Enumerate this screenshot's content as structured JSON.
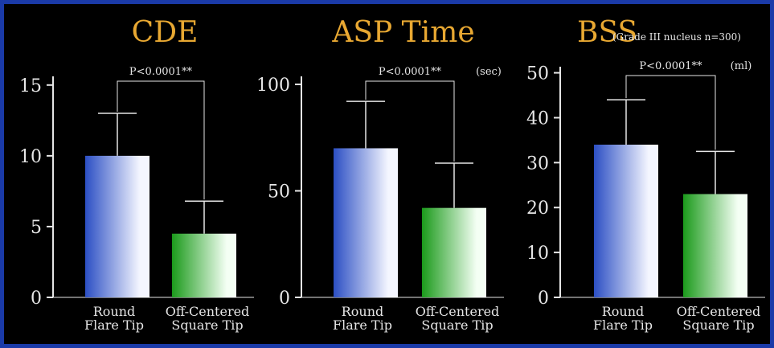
{
  "theme": {
    "background": "#000000",
    "border": "#1a3aa8",
    "title_color": "#e8a832",
    "text_color": "#e6e6e6",
    "bar1_colors": [
      "#2c4fc4",
      "#f4f6ff"
    ],
    "bar2_colors": [
      "#1b9a1b",
      "#f4fff4"
    ]
  },
  "chart_data": [
    {
      "type": "bar",
      "title": "CDE",
      "subtitle": "",
      "unit": "",
      "significance": "P<0.0001**",
      "categories": [
        [
          "Round",
          "Flare Tip"
        ],
        [
          "Off-Centered",
          "Square Tip"
        ]
      ],
      "values": [
        10,
        4.5
      ],
      "error_upper": [
        13,
        6.8
      ],
      "ylim": [
        0,
        15.5
      ],
      "yticks": [
        0,
        5,
        10,
        15
      ]
    },
    {
      "type": "bar",
      "title": "ASP Time",
      "subtitle": "",
      "unit": "(sec)",
      "significance": "P<0.0001**",
      "categories": [
        [
          "Round",
          "Flare Tip"
        ],
        [
          "Off-Centered",
          "Square Tip"
        ]
      ],
      "values": [
        70,
        42
      ],
      "error_upper": [
        92,
        63
      ],
      "ylim": [
        0,
        103
      ],
      "yticks": [
        0,
        50,
        100
      ]
    },
    {
      "type": "bar",
      "title": "BSS",
      "subtitle": "(Grade III nucleus n=300)",
      "unit": "(ml)",
      "significance": "P<0.0001**",
      "categories": [
        [
          "Round",
          "Flare Tip"
        ],
        [
          "Off-Centered",
          "Square Tip"
        ]
      ],
      "values": [
        34,
        23
      ],
      "error_upper": [
        44,
        32.5
      ],
      "ylim": [
        0,
        51
      ],
      "yticks": [
        0,
        10,
        20,
        30,
        40,
        50
      ]
    }
  ]
}
